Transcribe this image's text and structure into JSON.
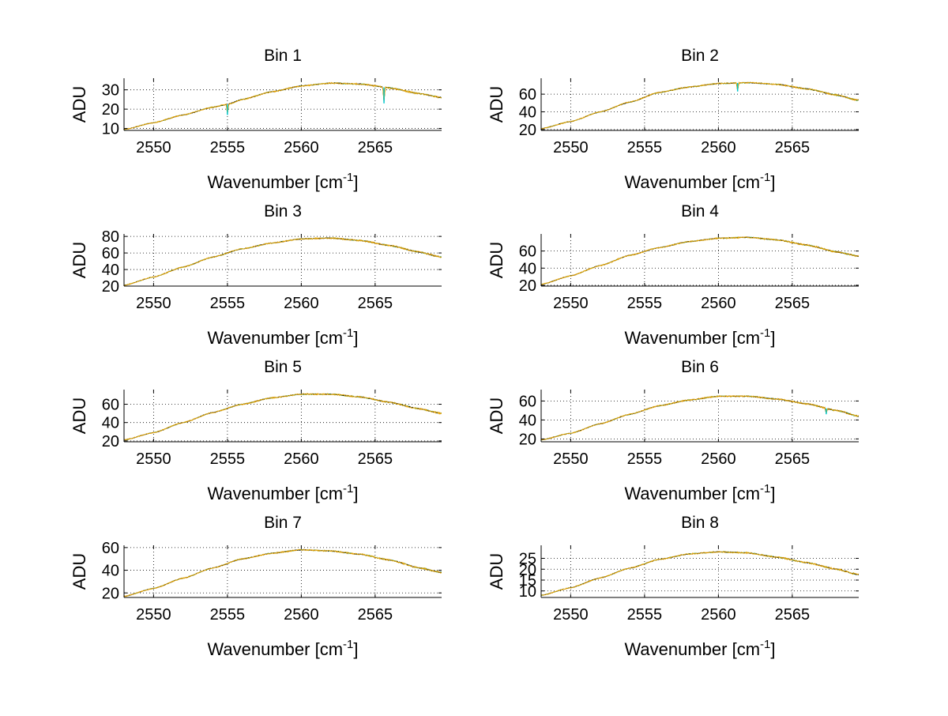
{
  "figure": {
    "background": "#ffffff",
    "grid": true,
    "line_color": "#e8a200",
    "secondary_colors": [
      "#3cb44b",
      "#00c8d0",
      "#000000"
    ]
  },
  "chart_data": [
    {
      "type": "line",
      "title": "Bin 1",
      "xlabel_base": "Wavenumber [cm",
      "xlabel_exp": "-1",
      "xlabel_close": "]",
      "ylabel": "ADU",
      "xlim": [
        2548,
        2569.5
      ],
      "ylim": [
        9,
        36
      ],
      "xticks": [
        2550,
        2555,
        2560,
        2565
      ],
      "yticks": [
        10,
        20,
        30
      ],
      "curve": {
        "x": [
          2548,
          2550,
          2552,
          2554,
          2555,
          2556,
          2558,
          2560,
          2562,
          2564,
          2566,
          2568,
          2569.5
        ],
        "y": [
          9.5,
          13,
          17,
          21,
          22.5,
          25,
          29,
          32,
          33.5,
          33,
          31,
          28,
          26
        ]
      },
      "dips": [
        {
          "x": 2555,
          "y": 17
        },
        {
          "x": 2565.6,
          "y": 23
        }
      ]
    },
    {
      "type": "line",
      "title": "Bin 2",
      "xlabel_base": "Wavenumber [cm",
      "xlabel_exp": "-1",
      "xlabel_close": "]",
      "ylabel": "ADU",
      "xlim": [
        2548,
        2569.5
      ],
      "ylim": [
        19,
        78
      ],
      "xticks": [
        2550,
        2555,
        2560,
        2565
      ],
      "yticks": [
        20,
        40,
        60
      ],
      "curve": {
        "x": [
          2548,
          2550,
          2552,
          2554,
          2556,
          2558,
          2560,
          2562,
          2564,
          2566,
          2568,
          2569.5
        ],
        "y": [
          21,
          29,
          40,
          51,
          62,
          68,
          72,
          73,
          71,
          66,
          59,
          53
        ]
      },
      "dips": [
        {
          "x": 2561.3,
          "y": 63
        }
      ]
    },
    {
      "type": "line",
      "title": "Bin 3",
      "xlabel_base": "Wavenumber [cm",
      "xlabel_exp": "-1",
      "xlabel_close": "]",
      "ylabel": "ADU",
      "xlim": [
        2548,
        2569.5
      ],
      "ylim": [
        20,
        83
      ],
      "xticks": [
        2550,
        2555,
        2560,
        2565
      ],
      "yticks": [
        20,
        40,
        60,
        80
      ],
      "curve": {
        "x": [
          2548,
          2550,
          2552,
          2554,
          2556,
          2558,
          2560,
          2562,
          2564,
          2566,
          2568,
          2569.5
        ],
        "y": [
          21,
          31,
          43,
          55,
          65,
          72,
          77,
          78,
          75,
          69,
          61,
          55
        ]
      },
      "dips": []
    },
    {
      "type": "line",
      "title": "Bin 4",
      "xlabel_base": "Wavenumber [cm",
      "xlabel_exp": "-1",
      "xlabel_close": "]",
      "ylabel": "ADU",
      "xlim": [
        2548,
        2569.5
      ],
      "ylim": [
        19,
        80
      ],
      "xticks": [
        2550,
        2555,
        2560,
        2565
      ],
      "yticks": [
        20,
        40,
        60
      ],
      "curve": {
        "x": [
          2548,
          2550,
          2552,
          2554,
          2556,
          2558,
          2560,
          2562,
          2564,
          2566,
          2568,
          2569.5
        ],
        "y": [
          21,
          31,
          43,
          55,
          64,
          71,
          75,
          76,
          73,
          67,
          59,
          54
        ]
      },
      "dips": []
    },
    {
      "type": "line",
      "title": "Bin 5",
      "xlabel_base": "Wavenumber [cm",
      "xlabel_exp": "-1",
      "xlabel_close": "]",
      "ylabel": "ADU",
      "xlim": [
        2548,
        2569.5
      ],
      "ylim": [
        19,
        76
      ],
      "xticks": [
        2550,
        2555,
        2560,
        2565
      ],
      "yticks": [
        20,
        40,
        60
      ],
      "curve": {
        "x": [
          2548,
          2550,
          2552,
          2554,
          2556,
          2558,
          2560,
          2562,
          2564,
          2566,
          2568,
          2569.5
        ],
        "y": [
          21,
          29,
          40,
          51,
          60,
          67,
          71,
          71,
          68,
          62,
          55,
          50
        ]
      },
      "dips": []
    },
    {
      "type": "line",
      "title": "Bin 6",
      "xlabel_base": "Wavenumber [cm",
      "xlabel_exp": "-1",
      "xlabel_close": "]",
      "ylabel": "ADU",
      "xlim": [
        2548,
        2569.5
      ],
      "ylim": [
        17,
        72
      ],
      "xticks": [
        2550,
        2555,
        2560,
        2565
      ],
      "yticks": [
        20,
        40,
        60
      ],
      "curve": {
        "x": [
          2548,
          2550,
          2552,
          2554,
          2556,
          2558,
          2560,
          2562,
          2564,
          2566,
          2568,
          2569.5
        ],
        "y": [
          19,
          26,
          36,
          46,
          55,
          61,
          65,
          65,
          62,
          57,
          50,
          44
        ]
      },
      "dips": [
        {
          "x": 2567.3,
          "y": 46
        }
      ]
    },
    {
      "type": "line",
      "title": "Bin 7",
      "xlabel_base": "Wavenumber [cm",
      "xlabel_exp": "-1",
      "xlabel_close": "]",
      "ylabel": "ADU",
      "xlim": [
        2548,
        2569.5
      ],
      "ylim": [
        16,
        62
      ],
      "xticks": [
        2550,
        2555,
        2560,
        2565
      ],
      "yticks": [
        20,
        40,
        60
      ],
      "curve": {
        "x": [
          2548,
          2550,
          2552,
          2554,
          2556,
          2558,
          2560,
          2562,
          2564,
          2566,
          2568,
          2569.5
        ],
        "y": [
          17,
          24,
          33,
          42,
          50,
          55,
          58,
          57,
          54,
          49,
          42,
          38
        ]
      },
      "dips": []
    },
    {
      "type": "line",
      "title": "Bin 8",
      "xlabel_base": "Wavenumber [cm",
      "xlabel_exp": "-1",
      "xlabel_close": "]",
      "ylabel": "ADU",
      "xlim": [
        2548,
        2569.5
      ],
      "ylim": [
        7,
        31
      ],
      "xticks": [
        2550,
        2555,
        2560,
        2565
      ],
      "yticks": [
        10,
        15,
        20,
        25
      ],
      "curve": {
        "x": [
          2548,
          2550,
          2552,
          2554,
          2556,
          2558,
          2560,
          2562,
          2564,
          2566,
          2568,
          2569.5
        ],
        "y": [
          8,
          11.5,
          16,
          20.5,
          24.5,
          27,
          28,
          27.5,
          25.5,
          23,
          20,
          17.5
        ]
      },
      "dips": []
    }
  ]
}
